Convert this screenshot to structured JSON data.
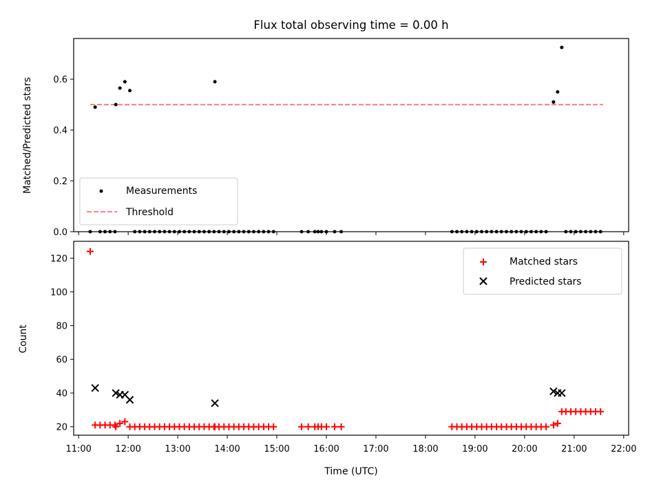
{
  "chart_data": [
    {
      "type": "scatter",
      "title": "Flux total observing time = 0.00 h",
      "xlabel": "",
      "ylabel": "Matched/Predicted stars",
      "xlim": [
        "10:54",
        "22:06"
      ],
      "ylim": [
        0,
        0.76
      ],
      "yticks": [
        0.0,
        0.2,
        0.4,
        0.6
      ],
      "ytick_labels": [
        "0.0",
        "0.2",
        "0.4",
        "0.6"
      ],
      "legend_position": "lower-left",
      "grid": false,
      "series": [
        {
          "name": "Measurements",
          "marker": "dot",
          "color": "#000000",
          "points": [
            [
              "11:14",
              0.0
            ],
            [
              "11:20",
              0.49
            ],
            [
              "11:26",
              0.0
            ],
            [
              "11:32",
              0.0
            ],
            [
              "11:38",
              0.0
            ],
            [
              "11:44",
              0.0
            ],
            [
              "11:45",
              0.5
            ],
            [
              "11:50",
              0.565
            ],
            [
              "11:56",
              0.59
            ],
            [
              "12:02",
              0.555
            ],
            [
              "12:08",
              0.0
            ],
            [
              "12:14",
              0.0
            ],
            [
              "12:20",
              0.0
            ],
            [
              "12:26",
              0.0
            ],
            [
              "12:32",
              0.0
            ],
            [
              "12:38",
              0.0
            ],
            [
              "12:44",
              0.0
            ],
            [
              "12:50",
              0.0
            ],
            [
              "12:56",
              0.0
            ],
            [
              "13:02",
              0.0
            ],
            [
              "13:08",
              0.0
            ],
            [
              "13:14",
              0.0
            ],
            [
              "13:20",
              0.0
            ],
            [
              "13:26",
              0.0
            ],
            [
              "13:32",
              0.0
            ],
            [
              "13:38",
              0.0
            ],
            [
              "13:44",
              0.0
            ],
            [
              "13:45",
              0.59
            ],
            [
              "13:50",
              0.0
            ],
            [
              "13:56",
              0.0
            ],
            [
              "14:02",
              0.0
            ],
            [
              "14:08",
              0.0
            ],
            [
              "14:14",
              0.0
            ],
            [
              "14:20",
              0.0
            ],
            [
              "14:26",
              0.0
            ],
            [
              "14:32",
              0.0
            ],
            [
              "14:38",
              0.0
            ],
            [
              "14:44",
              0.0
            ],
            [
              "14:50",
              0.0
            ],
            [
              "14:56",
              0.0
            ],
            [
              "15:30",
              0.0
            ],
            [
              "15:38",
              0.0
            ],
            [
              "15:46",
              0.0
            ],
            [
              "15:50",
              0.0
            ],
            [
              "15:54",
              0.0
            ],
            [
              "16:00",
              0.0
            ],
            [
              "16:10",
              0.0
            ],
            [
              "16:18",
              0.0
            ],
            [
              "18:32",
              0.0
            ],
            [
              "18:38",
              0.0
            ],
            [
              "18:44",
              0.0
            ],
            [
              "18:50",
              0.0
            ],
            [
              "18:56",
              0.0
            ],
            [
              "19:02",
              0.0
            ],
            [
              "19:08",
              0.0
            ],
            [
              "19:14",
              0.0
            ],
            [
              "19:20",
              0.0
            ],
            [
              "19:26",
              0.0
            ],
            [
              "19:32",
              0.0
            ],
            [
              "19:38",
              0.0
            ],
            [
              "19:44",
              0.0
            ],
            [
              "19:50",
              0.0
            ],
            [
              "19:56",
              0.0
            ],
            [
              "20:02",
              0.0
            ],
            [
              "20:08",
              0.0
            ],
            [
              "20:14",
              0.0
            ],
            [
              "20:20",
              0.0
            ],
            [
              "20:26",
              0.0
            ],
            [
              "20:35",
              0.51
            ],
            [
              "20:40",
              0.55
            ],
            [
              "20:45",
              0.725
            ],
            [
              "20:50",
              0.0
            ],
            [
              "20:56",
              0.0
            ],
            [
              "21:02",
              0.0
            ],
            [
              "21:08",
              0.0
            ],
            [
              "21:14",
              0.0
            ],
            [
              "21:20",
              0.0
            ],
            [
              "21:26",
              0.0
            ],
            [
              "21:32",
              0.0
            ]
          ]
        },
        {
          "name": "Threshold",
          "type": "line",
          "style": "dashed",
          "color": "#ff7f7f",
          "points": [
            [
              "11:14",
              0.5
            ],
            [
              "21:35",
              0.5
            ]
          ]
        }
      ]
    },
    {
      "type": "scatter",
      "title": "",
      "xlabel": "Time (UTC)",
      "ylabel": "Count",
      "xlim": [
        "10:54",
        "22:06"
      ],
      "ylim": [
        15,
        130
      ],
      "yticks": [
        20,
        40,
        60,
        80,
        100,
        120
      ],
      "ytick_labels": [
        "20",
        "40",
        "60",
        "80",
        "100",
        "120"
      ],
      "xticks": [
        "11:00",
        "12:00",
        "13:00",
        "14:00",
        "15:00",
        "16:00",
        "17:00",
        "18:00",
        "19:00",
        "20:00",
        "21:00",
        "22:00"
      ],
      "legend_position": "top-right",
      "grid": false,
      "series": [
        {
          "name": "Matched stars",
          "marker": "plus",
          "color": "#ff0000",
          "points": [
            [
              "11:14",
              124
            ],
            [
              "11:20",
              21
            ],
            [
              "11:26",
              21
            ],
            [
              "11:32",
              21
            ],
            [
              "11:38",
              21
            ],
            [
              "11:44",
              21
            ],
            [
              "11:45",
              20
            ],
            [
              "11:50",
              22
            ],
            [
              "11:56",
              23
            ],
            [
              "12:02",
              20
            ],
            [
              "12:08",
              20
            ],
            [
              "12:14",
              20
            ],
            [
              "12:20",
              20
            ],
            [
              "12:26",
              20
            ],
            [
              "12:32",
              20
            ],
            [
              "12:38",
              20
            ],
            [
              "12:44",
              20
            ],
            [
              "12:50",
              20
            ],
            [
              "12:56",
              20
            ],
            [
              "13:02",
              20
            ],
            [
              "13:08",
              20
            ],
            [
              "13:14",
              20
            ],
            [
              "13:20",
              20
            ],
            [
              "13:26",
              20
            ],
            [
              "13:32",
              20
            ],
            [
              "13:38",
              20
            ],
            [
              "13:44",
              20
            ],
            [
              "13:45",
              20
            ],
            [
              "13:50",
              20
            ],
            [
              "13:56",
              20
            ],
            [
              "14:02",
              20
            ],
            [
              "14:08",
              20
            ],
            [
              "14:14",
              20
            ],
            [
              "14:20",
              20
            ],
            [
              "14:26",
              20
            ],
            [
              "14:32",
              20
            ],
            [
              "14:38",
              20
            ],
            [
              "14:44",
              20
            ],
            [
              "14:50",
              20
            ],
            [
              "14:56",
              20
            ],
            [
              "15:30",
              20
            ],
            [
              "15:38",
              20
            ],
            [
              "15:46",
              20
            ],
            [
              "15:50",
              20
            ],
            [
              "15:54",
              20
            ],
            [
              "16:00",
              20
            ],
            [
              "16:10",
              20
            ],
            [
              "16:18",
              20
            ],
            [
              "18:32",
              20
            ],
            [
              "18:38",
              20
            ],
            [
              "18:44",
              20
            ],
            [
              "18:50",
              20
            ],
            [
              "18:56",
              20
            ],
            [
              "19:02",
              20
            ],
            [
              "19:08",
              20
            ],
            [
              "19:14",
              20
            ],
            [
              "19:20",
              20
            ],
            [
              "19:26",
              20
            ],
            [
              "19:32",
              20
            ],
            [
              "19:38",
              20
            ],
            [
              "19:44",
              20
            ],
            [
              "19:50",
              20
            ],
            [
              "19:56",
              20
            ],
            [
              "20:02",
              20
            ],
            [
              "20:08",
              20
            ],
            [
              "20:14",
              20
            ],
            [
              "20:20",
              20
            ],
            [
              "20:26",
              20
            ],
            [
              "20:35",
              21
            ],
            [
              "20:40",
              22
            ],
            [
              "20:45",
              29
            ],
            [
              "20:50",
              29
            ],
            [
              "20:56",
              29
            ],
            [
              "21:02",
              29
            ],
            [
              "21:08",
              29
            ],
            [
              "21:14",
              29
            ],
            [
              "21:20",
              29
            ],
            [
              "21:26",
              29
            ],
            [
              "21:32",
              29
            ]
          ]
        },
        {
          "name": "Predicted stars",
          "marker": "x",
          "color": "#000000",
          "points": [
            [
              "11:20",
              43
            ],
            [
              "11:45",
              40
            ],
            [
              "11:50",
              39
            ],
            [
              "11:56",
              39
            ],
            [
              "12:02",
              36
            ],
            [
              "13:45",
              34
            ],
            [
              "20:35",
              41
            ],
            [
              "20:40",
              40
            ],
            [
              "20:45",
              40
            ]
          ]
        }
      ]
    }
  ]
}
